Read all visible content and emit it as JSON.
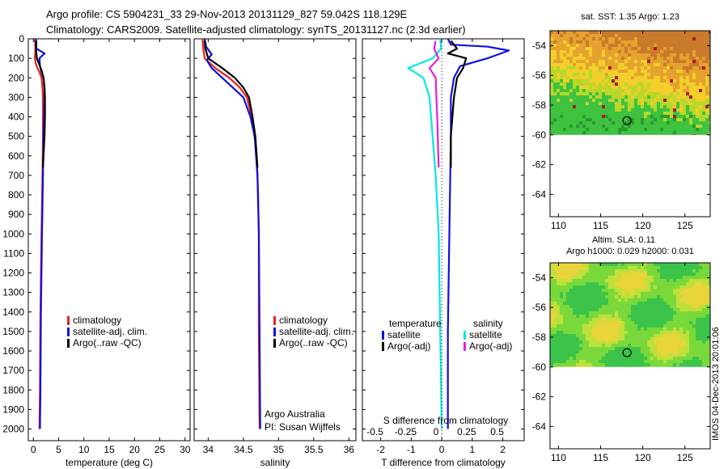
{
  "header": {
    "line1": "Argo profile: CS 5904231_33 29-Nov-2013 20131129_827 59.042S 118.129E",
    "line2": "Climatology: CARS2009. Satellite-adjusted climatology: synTS_20131127.nc (2.3d earlier)"
  },
  "side_stamp": "IMOS 04-Dec-2013 20:01:06",
  "colors": {
    "red": "#e8231c",
    "blue": "#1010e0",
    "black": "#000000",
    "cyan": "#00e8e8",
    "magenta": "#e020e0"
  },
  "chart_data": [
    {
      "type": "line",
      "xlabel": "temperature (deg C)",
      "xlim": [
        -1,
        31
      ],
      "xticks": [
        "0",
        "5",
        "10",
        "15",
        "20",
        "25",
        "30"
      ],
      "ylim": [
        2060,
        0
      ],
      "yticks": [
        "0",
        "100",
        "200",
        "300",
        "400",
        "500",
        "600",
        "700",
        "800",
        "900",
        "1000",
        "1100",
        "1200",
        "1300",
        "1400",
        "1500",
        "1600",
        "1700",
        "1800",
        "1900",
        "2000"
      ],
      "legend": [
        "climatology",
        "satellite-adj. clim.",
        "Argo(..raw -QC)"
      ],
      "series": [
        {
          "color": "red",
          "x": [
            0.3,
            0.4,
            0.3,
            0.5,
            0.8,
            1.2,
            1.6,
            1.8,
            1.9,
            1.9,
            1.9,
            1.8,
            1.6,
            1.4,
            1.3,
            1.2
          ],
          "y": [
            0,
            50,
            100,
            130,
            150,
            170,
            200,
            250,
            300,
            400,
            500,
            700,
            1000,
            1400,
            1800,
            2000
          ]
        },
        {
          "color": "blue",
          "x": [
            0.5,
            0.6,
            2.2,
            1.2,
            1.3,
            1.6,
            2.0,
            2.2,
            2.2,
            2.1,
            2.0,
            1.9,
            1.7,
            1.5,
            1.4,
            1.3
          ],
          "y": [
            0,
            50,
            75,
            100,
            140,
            170,
            200,
            250,
            300,
            400,
            500,
            700,
            1000,
            1400,
            1800,
            2000
          ]
        },
        {
          "color": "black",
          "x": [
            0.6,
            0.5,
            0.7,
            1.3,
            1.7,
            2.0,
            2.2,
            2.3,
            2.3,
            2.2,
            2.0,
            1.9
          ],
          "y": [
            10,
            50,
            100,
            140,
            170,
            200,
            250,
            300,
            400,
            500,
            600,
            660
          ]
        }
      ]
    },
    {
      "type": "line",
      "xlabel": "salinity",
      "xlim": [
        33.8,
        36.1
      ],
      "xticks": [
        "34",
        "34.5",
        "35",
        "35.5",
        "36"
      ],
      "ylim": [
        2060,
        0
      ],
      "legend": [
        "climatology",
        "satellite-adj. clim.",
        "Argo(..raw -QC)"
      ],
      "annotation": [
        "Argo Australia",
        "PI: Susan Wijffels"
      ],
      "series": [
        {
          "color": "red",
          "x": [
            33.92,
            33.93,
            33.95,
            34.1,
            34.3,
            34.45,
            34.55,
            34.62,
            34.66,
            34.69,
            34.71,
            34.72,
            34.72,
            34.73
          ],
          "y": [
            0,
            50,
            100,
            150,
            200,
            250,
            300,
            400,
            500,
            600,
            800,
            1000,
            1500,
            2000
          ]
        },
        {
          "color": "blue",
          "x": [
            33.95,
            33.97,
            34.05,
            33.98,
            34.05,
            34.2,
            34.35,
            34.5,
            34.6,
            34.66,
            34.7,
            34.72,
            34.73,
            34.74
          ],
          "y": [
            0,
            40,
            80,
            110,
            150,
            200,
            250,
            300,
            400,
            500,
            700,
            1000,
            1500,
            2000
          ]
        },
        {
          "color": "black",
          "x": [
            33.95,
            33.96,
            34.0,
            34.2,
            34.38,
            34.5,
            34.58,
            34.63,
            34.67,
            34.7
          ],
          "y": [
            10,
            50,
            100,
            150,
            200,
            250,
            300,
            400,
            500,
            660
          ]
        }
      ]
    },
    {
      "type": "line",
      "xlabel": "T difference from climatology",
      "top_label": "S difference from climatology",
      "xlim": [
        -2.6,
        2.7
      ],
      "xticks": [
        "-2",
        "-1",
        "0",
        "1",
        "2"
      ],
      "top_ticks": [
        "-0.5",
        "-0.25",
        "0",
        "0.25",
        "0.5"
      ],
      "ylim": [
        2060,
        0
      ],
      "legend_left_title": "temperature",
      "legend_right_title": "salinity",
      "legend": [
        "satellite",
        "Argo(-adj)",
        "satellite",
        "Argo(-adj)"
      ],
      "series": [
        {
          "color": "blue",
          "x": [
            0.2,
            0.3,
            1.5,
            2.2,
            1.5,
            0.6,
            0.4,
            0.3,
            0.3,
            0.25,
            0.2,
            0.2
          ],
          "y": [
            0,
            30,
            40,
            60,
            100,
            140,
            200,
            300,
            500,
            1000,
            1500,
            2000
          ]
        },
        {
          "color": "black",
          "x": [
            0.3,
            0.5,
            0.2,
            0.8,
            0.7,
            0.5,
            0.4,
            0.3,
            0.3
          ],
          "y": [
            10,
            50,
            75,
            100,
            150,
            200,
            300,
            500,
            660
          ]
        },
        {
          "color": "cyan",
          "x": [
            -0.05,
            -0.02,
            -0.3,
            -1.1,
            -0.6,
            -0.4,
            -0.3,
            -0.2,
            -0.1,
            -0.05,
            0.0
          ],
          "y": [
            0,
            50,
            100,
            150,
            200,
            300,
            500,
            700,
            1000,
            1500,
            2000
          ]
        },
        {
          "color": "magenta",
          "x": [
            -0.2,
            -0.25,
            -0.1,
            -0.4,
            -0.2,
            -0.15,
            -0.1
          ],
          "y": [
            10,
            50,
            100,
            150,
            200,
            400,
            660
          ]
        }
      ]
    },
    {
      "type": "heatmap",
      "title": "sat. SST: 1.35 Argo: 1.23",
      "xlim": [
        109,
        128
      ],
      "ylim": [
        -65.5,
        -53
      ],
      "xticks": [
        "110",
        "115",
        "120",
        "125"
      ],
      "yticks": [
        "-54",
        "-56",
        "-58",
        "-60",
        "-62",
        "-64"
      ],
      "data_extent_lat": [
        -60,
        -53
      ],
      "float_position": [
        118.129,
        -59.042
      ]
    },
    {
      "type": "heatmap",
      "title_line1": "Altim. SLA: 0.11",
      "title_line2": "Argo h1000: 0.029 h2000: 0.031",
      "xlim": [
        109,
        128
      ],
      "ylim": [
        -65.5,
        -53
      ],
      "xticks": [
        "110",
        "115",
        "120",
        "125"
      ],
      "yticks": [
        "-54",
        "-56",
        "-58",
        "-60",
        "-62",
        "-64"
      ],
      "data_extent_lat": [
        -60,
        -53
      ],
      "float_position": [
        118.129,
        -59.042
      ]
    }
  ]
}
